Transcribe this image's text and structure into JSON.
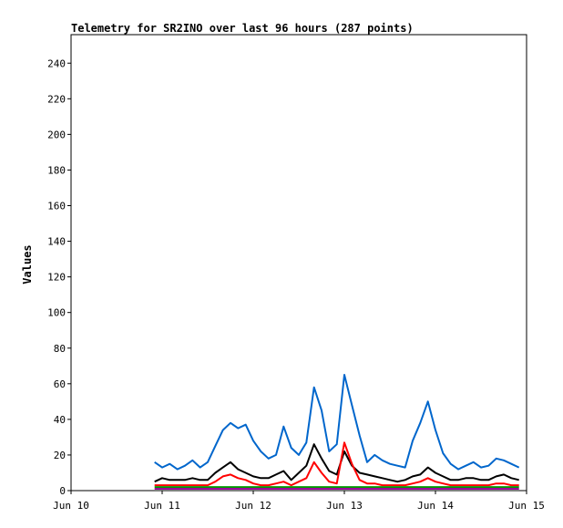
{
  "chart_data": {
    "type": "line",
    "title": "Telemetry for SR2INO over last 96 hours (287 points)",
    "ylabel": "Values",
    "xlabel": "",
    "xlim": [
      "2024-06-10T00:00",
      "2024-06-15T00:00"
    ],
    "ylim": [
      0,
      256
    ],
    "x_ticks": [
      "Jun 10",
      "Jun 11",
      "Jun 12",
      "Jun 13",
      "Jun 14",
      "Jun 15"
    ],
    "y_ticks": [
      0,
      20,
      40,
      60,
      80,
      100,
      120,
      140,
      160,
      180,
      200,
      220,
      240
    ],
    "grid": false,
    "legend": "none",
    "x_hours_from_start": [
      22,
      24,
      26,
      28,
      30,
      32,
      34,
      36,
      38,
      40,
      42,
      44,
      46,
      48,
      50,
      52,
      54,
      56,
      58,
      60,
      62,
      64,
      66,
      68,
      70,
      72,
      74,
      76,
      78,
      80,
      82,
      84,
      86,
      88,
      90,
      92,
      94,
      96,
      98,
      100,
      102,
      104,
      106,
      108,
      110,
      112,
      114,
      116,
      118
    ],
    "series": [
      {
        "color": "#0066cc",
        "values": [
          16,
          13,
          15,
          12,
          14,
          17,
          13,
          16,
          25,
          34,
          38,
          35,
          37,
          28,
          22,
          18,
          20,
          36,
          24,
          20,
          27,
          58,
          45,
          22,
          26,
          65,
          48,
          31,
          16,
          20,
          17,
          15,
          14,
          13,
          28,
          38,
          50,
          34,
          21,
          15,
          12,
          14,
          16,
          13,
          14,
          18,
          17,
          15,
          13
        ]
      },
      {
        "color": "#000000",
        "values": [
          5,
          7,
          6,
          6,
          6,
          7,
          6,
          6,
          10,
          13,
          16,
          12,
          10,
          8,
          7,
          7,
          9,
          11,
          6,
          10,
          14,
          26,
          18,
          11,
          9,
          22,
          14,
          10,
          9,
          8,
          7,
          6,
          5,
          6,
          8,
          9,
          13,
          10,
          8,
          6,
          6,
          7,
          7,
          6,
          6,
          8,
          9,
          7,
          6
        ]
      },
      {
        "color": "#ff0000",
        "values": [
          3,
          3,
          3,
          3,
          3,
          3,
          3,
          3,
          5,
          8,
          9,
          7,
          6,
          4,
          3,
          3,
          4,
          5,
          3,
          5,
          7,
          16,
          10,
          5,
          4,
          27,
          15,
          6,
          4,
          4,
          3,
          3,
          3,
          3,
          4,
          5,
          7,
          5,
          4,
          3,
          3,
          3,
          3,
          3,
          3,
          4,
          4,
          3,
          3
        ]
      },
      {
        "color": "#009900",
        "values": [
          2,
          2,
          2,
          2,
          2,
          2,
          2,
          2,
          2,
          2,
          2,
          2,
          2,
          2,
          2,
          2,
          2,
          2,
          2,
          2,
          2,
          2,
          2,
          2,
          2,
          2,
          2,
          2,
          2,
          2,
          2,
          2,
          2,
          2,
          2,
          2,
          2,
          2,
          2,
          2,
          2,
          2,
          2,
          2,
          2,
          2,
          2,
          2,
          2
        ]
      },
      {
        "color": "#990099",
        "values": [
          1,
          1,
          1,
          1,
          1,
          1,
          1,
          1,
          1,
          1,
          1,
          1,
          1,
          1,
          1,
          1,
          1,
          1,
          1,
          1,
          1,
          1,
          1,
          1,
          1,
          1,
          1,
          1,
          1,
          1,
          1,
          1,
          1,
          1,
          1,
          1,
          1,
          1,
          1,
          1,
          1,
          1,
          1,
          1,
          1,
          1,
          1,
          1,
          1
        ]
      }
    ]
  }
}
